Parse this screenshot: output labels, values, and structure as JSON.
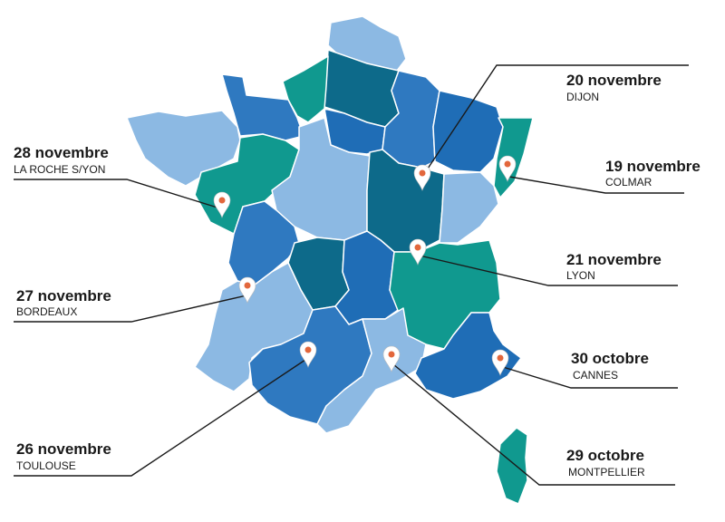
{
  "events": [
    {
      "date": "20 novembre",
      "city": "DIJON"
    },
    {
      "date": "19 novembre",
      "city": "COLMAR"
    },
    {
      "date": "21 novembre",
      "city": "LYON"
    },
    {
      "date": "30 octobre",
      "city": "CANNES"
    },
    {
      "date": "29 octobre",
      "city": "MONTPELLIER"
    },
    {
      "date": "26 novembre",
      "city": "TOULOUSE"
    },
    {
      "date": "27 novembre",
      "city": "BORDEAUX"
    },
    {
      "date": "28 novembre",
      "city": "LA ROCHE S/YON"
    }
  ]
}
